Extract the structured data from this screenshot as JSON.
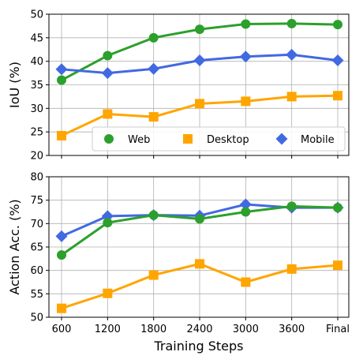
{
  "chart_data": [
    {
      "type": "line",
      "xlabel": "",
      "ylabel": "IoU (%)",
      "categories": [
        "600",
        "1200",
        "1800",
        "2400",
        "3000",
        "3600",
        "Final"
      ],
      "ylim": [
        20,
        50
      ],
      "yticks": [
        20,
        25,
        30,
        35,
        40,
        45,
        50
      ],
      "grid": true,
      "legend": "bottom-right",
      "series": [
        {
          "name": "Web",
          "color": "#2ca02c",
          "marker": "circle",
          "values": [
            36.0,
            41.2,
            45.0,
            46.8,
            47.9,
            48.0,
            47.8
          ]
        },
        {
          "name": "Desktop",
          "color": "#ffa500",
          "marker": "square",
          "values": [
            24.2,
            28.8,
            28.2,
            31.0,
            31.5,
            32.5,
            32.7
          ]
        },
        {
          "name": "Mobile",
          "color": "#4169e1",
          "marker": "diamond",
          "values": [
            38.3,
            37.5,
            38.4,
            40.2,
            41.0,
            41.4,
            40.2
          ]
        }
      ]
    },
    {
      "type": "line",
      "xlabel": "Training Steps",
      "ylabel": "Action Acc. (%)",
      "categories": [
        "600",
        "1200",
        "1800",
        "2400",
        "3000",
        "3600",
        "Final"
      ],
      "ylim": [
        50,
        80
      ],
      "yticks": [
        50,
        55,
        60,
        65,
        70,
        75,
        80
      ],
      "grid": true,
      "series": [
        {
          "name": "Mobile",
          "color": "#4169e1",
          "marker": "diamond",
          "values": [
            67.3,
            71.6,
            71.8,
            71.7,
            74.1,
            73.4,
            73.4
          ]
        },
        {
          "name": "Web",
          "color": "#2ca02c",
          "marker": "circle",
          "values": [
            63.3,
            70.2,
            71.8,
            71.0,
            72.5,
            73.7,
            73.4
          ]
        },
        {
          "name": "Desktop",
          "color": "#ffa500",
          "marker": "square",
          "values": [
            51.9,
            55.1,
            59.0,
            61.4,
            57.5,
            60.3,
            61.1
          ]
        }
      ]
    }
  ]
}
